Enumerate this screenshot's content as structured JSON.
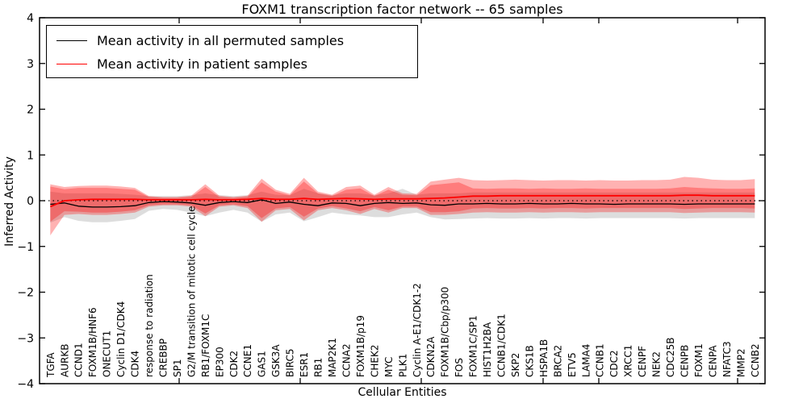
{
  "title": "FOXM1 transcription factor network -- 65 samples",
  "legend": {
    "entries": [
      {
        "label": "Mean activity in all permuted samples",
        "color": "#000000"
      },
      {
        "label": "Mean activity in patient samples",
        "color": "#ff0000"
      }
    ]
  },
  "chart_data": {
    "type": "line",
    "title": "FOXM1 transcription factor network -- 65 samples",
    "xlabel": "Cellular Entities",
    "ylabel": "Inferred Activity",
    "ylim": [
      -4,
      4
    ],
    "yticks": [
      4,
      3,
      2,
      1,
      0,
      -1,
      -2,
      -3,
      -4
    ],
    "ytick_labels": [
      "4",
      "3",
      "2",
      "1",
      "0",
      "−1",
      "−2",
      "−3",
      "−4"
    ],
    "grid": false,
    "zero_line": "dotted",
    "legend_position": "upper left",
    "categories": [
      "TGFA",
      "AURKB",
      "CCND1",
      "FOXM1B/HNF6",
      "ONECUT1",
      "Cyclin D1/CDK4",
      "CDK4",
      "response to radiation",
      "CREBBP",
      "SP1",
      "G2/M transition of mitotic cell cycle",
      "RB1/FOXM1C",
      "EP300",
      "CDK2",
      "CCNE1",
      "GAS1",
      "GSK3A",
      "BIRC5",
      "ESR1",
      "RB1",
      "MAP2K1",
      "CCNA2",
      "FOXM1B/p19",
      "CHEK2",
      "MYC",
      "PLK1",
      "Cyclin A-E1/CDK1-2",
      "CDKN2A",
      "FOXM1B/Cbp/p300",
      "FOS",
      "FOXM1C/SP1",
      "HIST1H2BA",
      "CCNB1/CDK1",
      "SKP2",
      "CKS1B",
      "HSPA1B",
      "BRCA2",
      "ETV5",
      "LAMA4",
      "CCNB1",
      "CDC2",
      "XRCC1",
      "CENPF",
      "NEK2",
      "CDC25B",
      "CENPB",
      "FOXM1",
      "CENPA",
      "NFATC3",
      "MMP2",
      "CCNB2"
    ],
    "series": [
      {
        "name": "permuted-band",
        "type": "band",
        "color": "#bbbbbb",
        "opacity": 0.5,
        "upper": [
          0.2,
          0.16,
          0.16,
          0.16,
          0.16,
          0.15,
          0.13,
          0.1,
          0.1,
          0.1,
          0.12,
          0.16,
          0.12,
          0.1,
          0.12,
          0.2,
          0.13,
          0.12,
          0.26,
          0.16,
          0.12,
          0.16,
          0.16,
          0.12,
          0.16,
          0.26,
          0.13,
          0.16,
          0.16,
          0.16,
          0.18,
          0.18,
          0.18,
          0.18,
          0.18,
          0.18,
          0.18,
          0.18,
          0.18,
          0.18,
          0.18,
          0.18,
          0.18,
          0.18,
          0.18,
          0.18,
          0.18,
          0.18,
          0.18,
          0.18,
          0.18
        ],
        "lower": [
          -0.48,
          -0.36,
          -0.44,
          -0.47,
          -0.47,
          -0.44,
          -0.4,
          -0.22,
          -0.18,
          -0.2,
          -0.26,
          -0.34,
          -0.26,
          -0.2,
          -0.26,
          -0.46,
          -0.3,
          -0.26,
          -0.45,
          -0.36,
          -0.26,
          -0.3,
          -0.32,
          -0.36,
          -0.36,
          -0.3,
          -0.26,
          -0.36,
          -0.41,
          -0.4,
          -0.39,
          -0.38,
          -0.39,
          -0.39,
          -0.38,
          -0.39,
          -0.38,
          -0.38,
          -0.39,
          -0.38,
          -0.38,
          -0.38,
          -0.38,
          -0.38,
          -0.38,
          -0.39,
          -0.38,
          -0.38,
          -0.38,
          -0.38,
          -0.38
        ]
      },
      {
        "name": "patient-band-outer",
        "type": "band",
        "color": "#ff0000",
        "opacity": 0.3,
        "upper": [
          0.36,
          0.3,
          0.32,
          0.33,
          0.33,
          0.31,
          0.28,
          0.1,
          0.08,
          0.08,
          0.11,
          0.36,
          0.11,
          0.08,
          0.11,
          0.48,
          0.24,
          0.15,
          0.5,
          0.2,
          0.13,
          0.3,
          0.33,
          0.13,
          0.3,
          0.16,
          0.15,
          0.42,
          0.46,
          0.5,
          0.45,
          0.44,
          0.45,
          0.46,
          0.45,
          0.44,
          0.45,
          0.45,
          0.44,
          0.45,
          0.44,
          0.44,
          0.45,
          0.45,
          0.46,
          0.52,
          0.5,
          0.46,
          0.45,
          0.45,
          0.47
        ],
        "lower": [
          -0.76,
          -0.31,
          -0.29,
          -0.31,
          -0.31,
          -0.29,
          -0.26,
          -0.13,
          -0.1,
          -0.1,
          -0.13,
          -0.34,
          -0.13,
          -0.1,
          -0.16,
          -0.46,
          -0.21,
          -0.18,
          -0.43,
          -0.21,
          -0.16,
          -0.21,
          -0.29,
          -0.18,
          -0.26,
          -0.16,
          -0.16,
          -0.31,
          -0.31,
          -0.29,
          -0.26,
          -0.25,
          -0.26,
          -0.26,
          -0.25,
          -0.26,
          -0.25,
          -0.25,
          -0.26,
          -0.25,
          -0.25,
          -0.25,
          -0.25,
          -0.25,
          -0.25,
          -0.27,
          -0.26,
          -0.25,
          -0.25,
          -0.25,
          -0.26
        ]
      },
      {
        "name": "patient-band-inner",
        "type": "band",
        "color": "#ff0000",
        "opacity": 0.3,
        "upper": [
          0.31,
          0.25,
          0.28,
          0.28,
          0.28,
          0.26,
          0.24,
          0.08,
          0.06,
          0.06,
          0.08,
          0.3,
          0.08,
          0.06,
          0.08,
          0.4,
          0.2,
          0.12,
          0.42,
          0.16,
          0.1,
          0.24,
          0.27,
          0.1,
          0.24,
          0.13,
          0.12,
          0.34,
          0.37,
          0.4,
          0.27,
          0.26,
          0.27,
          0.27,
          0.26,
          0.27,
          0.26,
          0.26,
          0.27,
          0.26,
          0.26,
          0.26,
          0.26,
          0.26,
          0.27,
          0.3,
          0.28,
          0.27,
          0.26,
          0.26,
          0.27
        ],
        "lower": [
          -0.46,
          -0.23,
          -0.24,
          -0.26,
          -0.26,
          -0.24,
          -0.21,
          -0.1,
          -0.08,
          -0.08,
          -0.1,
          -0.28,
          -0.1,
          -0.08,
          -0.12,
          -0.38,
          -0.17,
          -0.14,
          -0.35,
          -0.17,
          -0.12,
          -0.17,
          -0.23,
          -0.14,
          -0.21,
          -0.13,
          -0.13,
          -0.25,
          -0.25,
          -0.23,
          -0.17,
          -0.16,
          -0.17,
          -0.17,
          -0.16,
          -0.17,
          -0.16,
          -0.16,
          -0.17,
          -0.16,
          -0.16,
          -0.16,
          -0.16,
          -0.16,
          -0.16,
          -0.18,
          -0.17,
          -0.16,
          -0.16,
          -0.16,
          -0.17
        ]
      },
      {
        "name": "Mean activity in all permuted samples",
        "type": "line",
        "color": "#000000",
        "width": 1.3,
        "values": [
          -0.08,
          -0.05,
          -0.12,
          -0.14,
          -0.14,
          -0.13,
          -0.11,
          -0.04,
          -0.02,
          -0.03,
          -0.05,
          -0.1,
          -0.04,
          -0.02,
          -0.04,
          0.02,
          -0.06,
          -0.03,
          -0.08,
          -0.11,
          -0.05,
          -0.06,
          -0.11,
          -0.06,
          -0.04,
          -0.06,
          -0.05,
          -0.09,
          -0.1,
          -0.07,
          -0.07,
          -0.06,
          -0.07,
          -0.07,
          -0.06,
          -0.07,
          -0.07,
          -0.06,
          -0.07,
          -0.07,
          -0.08,
          -0.07,
          -0.07,
          -0.07,
          -0.07,
          -0.08,
          -0.07,
          -0.07,
          -0.07,
          -0.07,
          -0.07
        ]
      },
      {
        "name": "Mean activity in patient samples",
        "type": "line",
        "color": "#ff0000",
        "width": 1.8,
        "values": [
          -0.13,
          0.0,
          0.02,
          0.03,
          0.03,
          0.03,
          0.03,
          0.02,
          0.02,
          0.02,
          0.02,
          0.03,
          0.02,
          0.02,
          0.03,
          0.05,
          0.03,
          0.03,
          0.05,
          0.03,
          0.04,
          0.05,
          0.04,
          0.03,
          0.04,
          0.04,
          0.04,
          0.05,
          0.06,
          0.08,
          0.1,
          0.1,
          0.11,
          0.11,
          0.11,
          0.11,
          0.11,
          0.11,
          0.11,
          0.11,
          0.11,
          0.11,
          0.11,
          0.11,
          0.11,
          0.12,
          0.12,
          0.11,
          0.11,
          0.11,
          0.11
        ]
      }
    ]
  }
}
